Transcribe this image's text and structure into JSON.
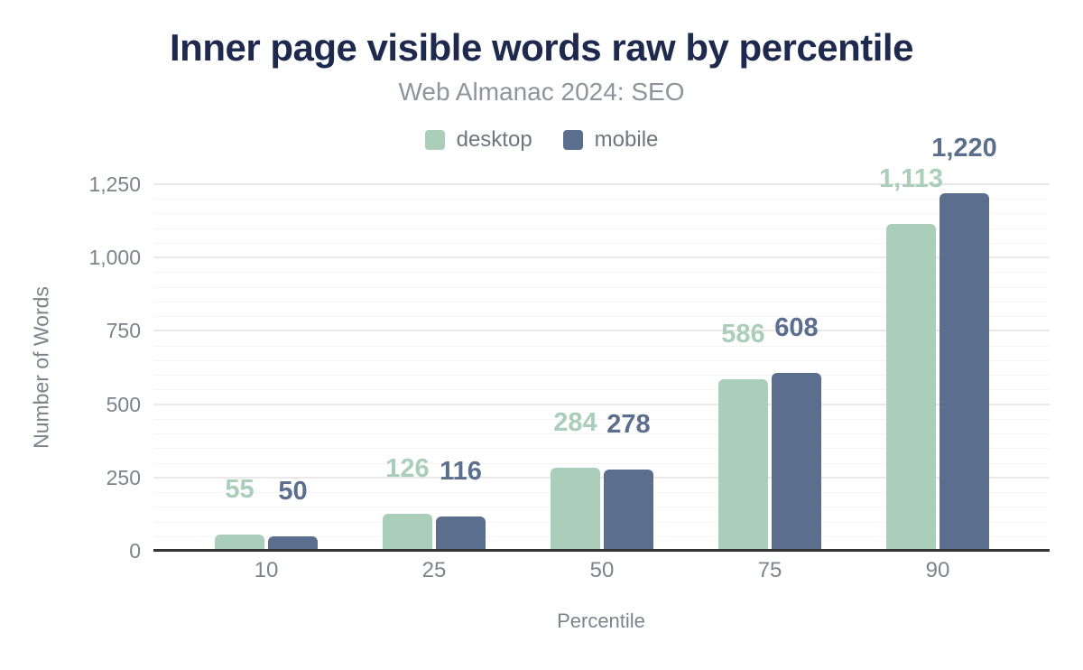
{
  "header": {
    "title": "Inner page visible words raw by percentile",
    "subtitle": "Web Almanac 2024: SEO"
  },
  "legend": [
    {
      "label": "desktop",
      "color": "#abceba"
    },
    {
      "label": "mobile",
      "color": "#5c6e8e"
    }
  ],
  "colors": {
    "title_text": "#1d2a4e",
    "muted_text": "#7d838b",
    "subtitle_text": "#8e949c",
    "axis_baseline": "#333333",
    "grid_major": "#e9e9e9",
    "grid_minor": "#f5f5f5",
    "background": "#ffffff"
  },
  "chart_data": {
    "type": "bar",
    "title": "Inner page visible words raw by percentile",
    "subtitle": "Web Almanac 2024: SEO",
    "categories": [
      "10",
      "25",
      "50",
      "75",
      "90"
    ],
    "series": [
      {
        "name": "desktop",
        "color": "#abceba",
        "values": [
          55,
          126,
          284,
          586,
          1113
        ]
      },
      {
        "name": "mobile",
        "color": "#5c6e8e",
        "values": [
          50,
          116,
          278,
          608,
          1220
        ]
      }
    ],
    "xlabel": "Percentile",
    "ylabel": "Number of Words",
    "ylim": [
      0,
      1250
    ],
    "y_major_ticks": [
      0,
      250,
      500,
      750,
      1000,
      1250
    ],
    "y_minor_step": 50,
    "grid": true,
    "legend_position": "top",
    "data_labels": true,
    "data_label_format": "thousands-comma"
  }
}
